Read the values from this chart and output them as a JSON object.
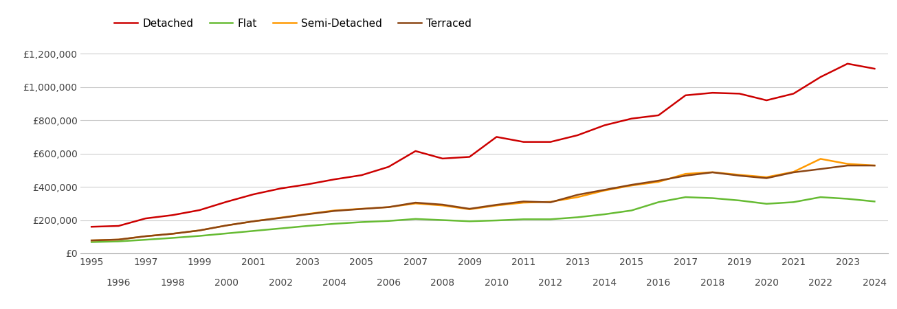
{
  "years": [
    1995,
    1996,
    1997,
    1998,
    1999,
    2000,
    2001,
    2002,
    2003,
    2004,
    2005,
    2006,
    2007,
    2008,
    2009,
    2010,
    2011,
    2012,
    2013,
    2014,
    2015,
    2016,
    2017,
    2018,
    2019,
    2020,
    2021,
    2022,
    2023,
    2024
  ],
  "detached": [
    160000,
    165000,
    210000,
    230000,
    260000,
    310000,
    355000,
    390000,
    415000,
    445000,
    470000,
    520000,
    615000,
    570000,
    580000,
    700000,
    670000,
    670000,
    710000,
    770000,
    810000,
    830000,
    950000,
    965000,
    960000,
    920000,
    960000,
    1060000,
    1140000,
    1110000
  ],
  "flat": [
    68000,
    72000,
    82000,
    93000,
    105000,
    120000,
    135000,
    150000,
    165000,
    178000,
    188000,
    195000,
    207000,
    200000,
    193000,
    198000,
    205000,
    205000,
    217000,
    235000,
    258000,
    308000,
    338000,
    332000,
    318000,
    298000,
    308000,
    338000,
    328000,
    312000
  ],
  "semi_detached": [
    78000,
    83000,
    103000,
    118000,
    138000,
    168000,
    193000,
    215000,
    237000,
    258000,
    268000,
    278000,
    300000,
    288000,
    265000,
    288000,
    305000,
    310000,
    338000,
    378000,
    408000,
    430000,
    478000,
    488000,
    472000,
    458000,
    490000,
    568000,
    538000,
    528000
  ],
  "terraced": [
    78000,
    83000,
    103000,
    118000,
    138000,
    168000,
    193000,
    213000,
    235000,
    255000,
    267000,
    278000,
    305000,
    293000,
    268000,
    292000,
    312000,
    307000,
    352000,
    382000,
    412000,
    437000,
    467000,
    487000,
    467000,
    452000,
    487000,
    507000,
    528000,
    528000
  ],
  "colors": {
    "detached": "#cc0000",
    "flat": "#66bb33",
    "semi_detached": "#ff9900",
    "terraced": "#8B4513"
  },
  "ylim": [
    0,
    1300000
  ],
  "yticks": [
    0,
    200000,
    400000,
    600000,
    800000,
    1000000,
    1200000
  ],
  "ytick_labels": [
    "£0",
    "£200,000",
    "£400,000",
    "£600,000",
    "£800,000",
    "£1,000,000",
    "£1,200,000"
  ],
  "background_color": "#ffffff",
  "grid_color": "#cccccc",
  "legend_labels": [
    "Detached",
    "Flat",
    "Semi-Detached",
    "Terraced"
  ],
  "line_width": 1.8,
  "xlim": [
    1994.6,
    2024.5
  ]
}
